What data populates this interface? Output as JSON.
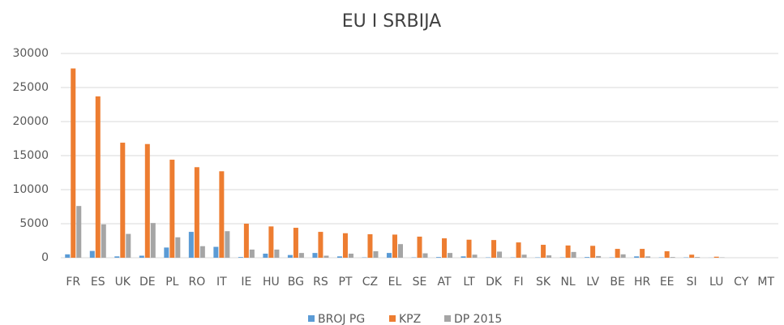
{
  "chart_data": {
    "type": "bar",
    "title": "EU I SRBIJA",
    "categories": [
      "FR",
      "ES",
      "UK",
      "DE",
      "PL",
      "RO",
      "IT",
      "IE",
      "HU",
      "BG",
      "RS",
      "PT",
      "CZ",
      "EL",
      "SE",
      "AT",
      "LT",
      "DK",
      "FI",
      "SK",
      "NL",
      "LV",
      "BE",
      "HR",
      "EE",
      "SI",
      "LU",
      "CY",
      "MT"
    ],
    "series": [
      {
        "name": "BROJ PG",
        "color": "#5b9bd5",
        "values": [
          500,
          1000,
          200,
          300,
          1500,
          3800,
          1600,
          100,
          600,
          400,
          700,
          200,
          50,
          700,
          50,
          100,
          200,
          50,
          50,
          50,
          50,
          100,
          50,
          200,
          50,
          50,
          10,
          0,
          0
        ]
      },
      {
        "name": "KPZ",
        "color": "#ed7d31",
        "values": [
          27800,
          23700,
          16900,
          16700,
          14400,
          13300,
          12700,
          5000,
          4600,
          4400,
          3800,
          3600,
          3450,
          3400,
          3100,
          2850,
          2650,
          2600,
          2250,
          1900,
          1800,
          1750,
          1300,
          1300,
          950,
          450,
          150,
          0,
          0
        ]
      },
      {
        "name": "DP 2015",
        "color": "#a5a5a5",
        "values": [
          7600,
          4900,
          3500,
          5100,
          3000,
          1700,
          3900,
          1200,
          1200,
          700,
          300,
          600,
          950,
          2000,
          650,
          700,
          450,
          900,
          450,
          350,
          850,
          250,
          500,
          200,
          100,
          100,
          50,
          0,
          0
        ]
      }
    ],
    "ylim": [
      0,
      30000
    ],
    "yticks": [
      0,
      5000,
      10000,
      15000,
      20000,
      25000,
      30000
    ],
    "grid": true
  }
}
